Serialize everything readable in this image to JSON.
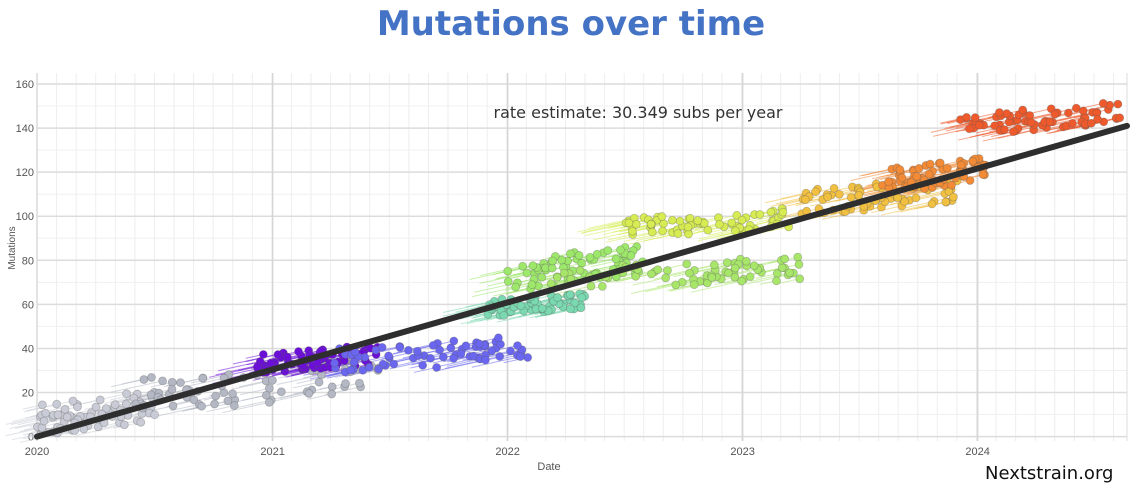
{
  "title": "Mutations over time",
  "credit": "Nextstrain.org",
  "chart_data": {
    "type": "scatter",
    "title": "Mutations over time",
    "xlabel": "Date",
    "ylabel": "Mutations",
    "x_ticks": [
      "2020",
      "2021",
      "2022",
      "2023",
      "2024"
    ],
    "y_ticks": [
      0,
      20,
      40,
      60,
      80,
      100,
      120,
      140,
      160
    ],
    "xlim": [
      "2020-01-01",
      "2024-08-20"
    ],
    "ylim": [
      -2,
      165
    ],
    "grid": true,
    "annotation": "rate estimate: 30.349 subs per year",
    "regression": {
      "rate_per_year": 30.349,
      "start": [
        "2020-01-01",
        0
      ],
      "end": [
        "2024-08-20",
        141
      ]
    },
    "series": [
      {
        "color": "#c9ccd6",
        "x_range": [
          "2020-01-01",
          "2020-07-15"
        ],
        "y_range": [
          0,
          22
        ]
      },
      {
        "color": "#b3b8c4",
        "x_range": [
          "2020-06-01",
          "2021-06-15"
        ],
        "y_range": [
          10,
          36
        ]
      },
      {
        "color": "#6b0fd8",
        "x_range": [
          "2020-12-01",
          "2021-06-15"
        ],
        "y_range": [
          28,
          42
        ]
      },
      {
        "color": "#6a66f0",
        "x_range": [
          "2021-04-01",
          "2022-02-15"
        ],
        "y_range": [
          28,
          46
        ]
      },
      {
        "color": "#7ad9b0",
        "x_range": [
          "2021-12-01",
          "2022-05-01"
        ],
        "y_range": [
          54,
          66
        ]
      },
      {
        "color": "#9de86a",
        "x_range": [
          "2022-01-01",
          "2022-08-01"
        ],
        "y_range": [
          65,
          88
        ]
      },
      {
        "color": "#a8e66a",
        "x_range": [
          "2022-03-01",
          "2023-04-01"
        ],
        "y_range": [
          65,
          82
        ]
      },
      {
        "color": "#d6ec52",
        "x_range": [
          "2022-07-01",
          "2023-04-01"
        ],
        "y_range": [
          90,
          104
        ]
      },
      {
        "color": "#f2c040",
        "x_range": [
          "2023-04-01",
          "2023-12-01"
        ],
        "y_range": [
          100,
          118
        ]
      },
      {
        "color": "#f28a36",
        "x_range": [
          "2023-08-01",
          "2024-01-15"
        ],
        "y_range": [
          110,
          127
        ]
      },
      {
        "color": "#ee5a2c",
        "x_range": [
          "2023-12-01",
          "2024-08-15"
        ],
        "y_range": [
          136,
          152
        ]
      }
    ]
  }
}
